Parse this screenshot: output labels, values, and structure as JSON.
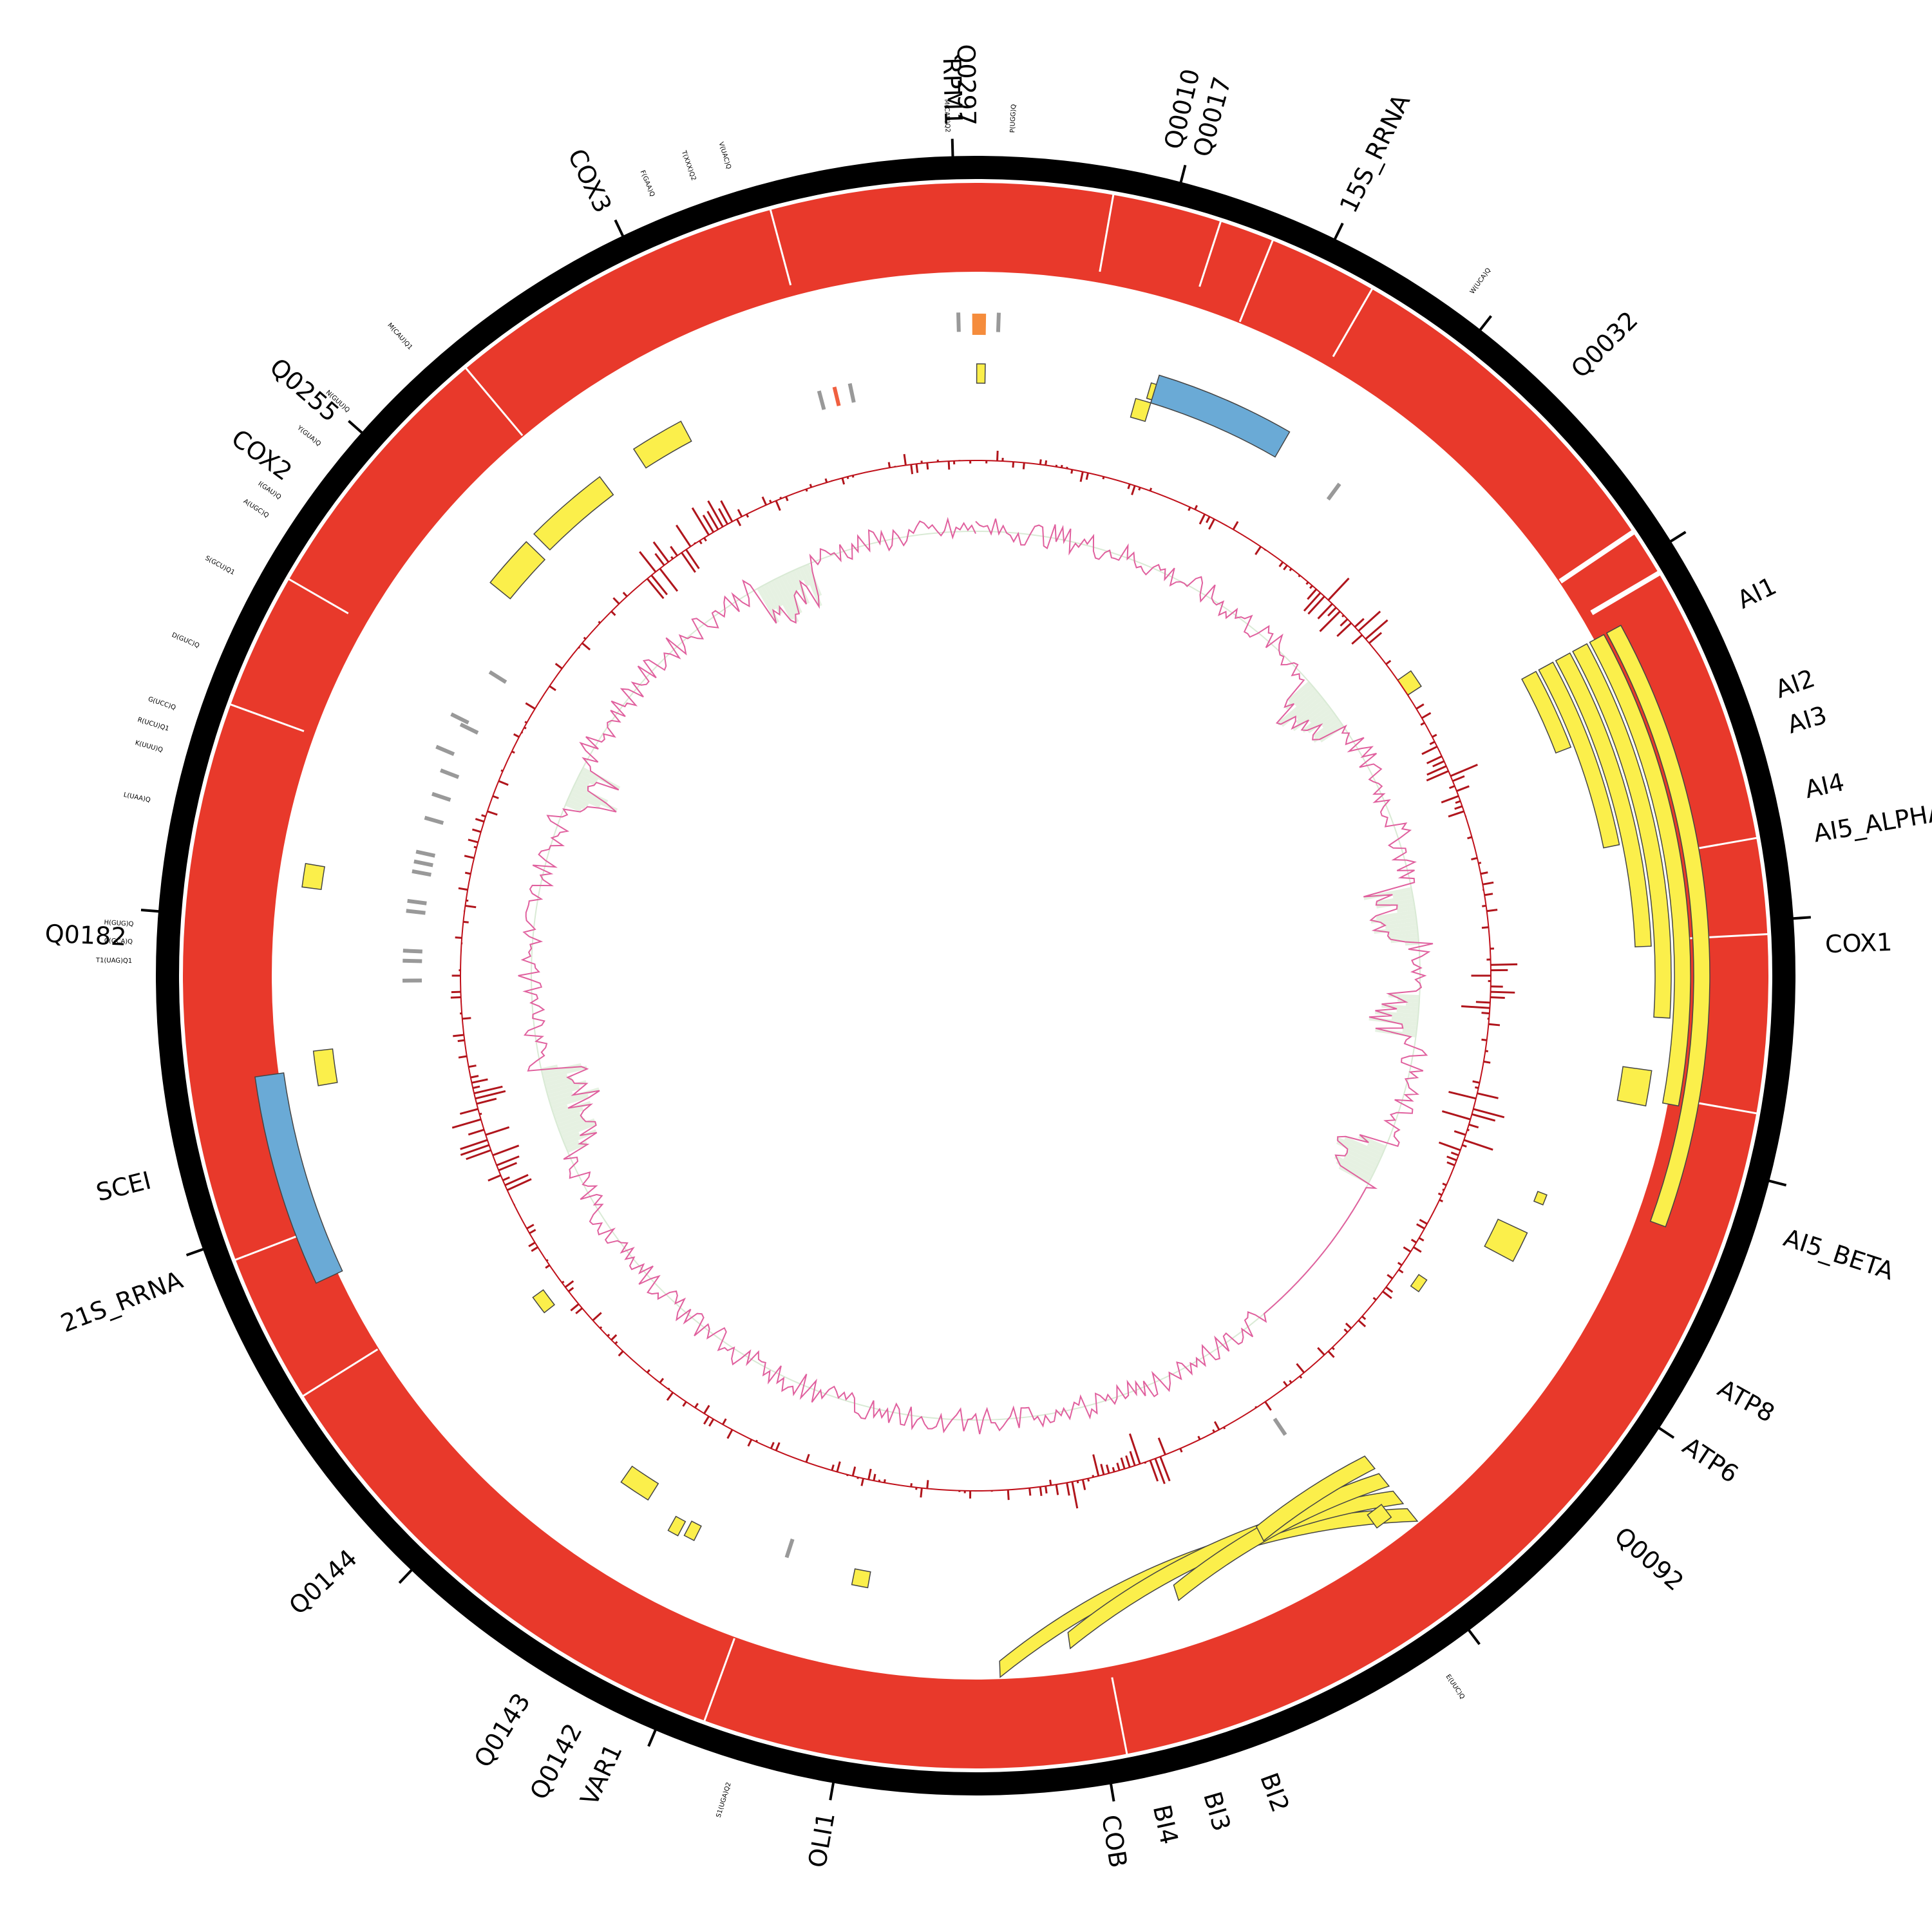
{
  "figure": {
    "type": "circular-genome-map",
    "colors": {
      "backbone": "#000000",
      "coverage": "#e8392b",
      "intron": "#fbef4b",
      "rrna": "#6aaad6",
      "trna_gray": "#999999",
      "trna_orange": "#f58c3c",
      "trna_red": "#f06040",
      "gc_skew": "#b0151c",
      "gc_content": "#e0609e",
      "gc_content_fill": "#e6f1e2"
    },
    "gene_labels": [
      "Q0297",
      "RPM1",
      "Q0010",
      "Q0017",
      "15S_RRNA",
      "Q0032",
      "AI1",
      "AI2",
      "AI3",
      "AI4",
      "AI5_ALPHA",
      "COX1",
      "AI5_BETA",
      "ATP8",
      "ATP6",
      "Q0092",
      "BI2",
      "BI3",
      "BI4",
      "COB",
      "OLI1",
      "VAR1",
      "Q0142",
      "Q0143",
      "Q0144",
      "21S_RRNA",
      "SCEI",
      "Q0182",
      "COX2",
      "Q0255",
      "COX3"
    ],
    "trna_labels": [
      "M(CAU)Q2",
      "P(UGG)Q",
      "W(UCA)Q",
      "E(UUC)Q",
      "S1(UGA)Q2",
      "T1(UAG)Q1",
      "C(GCA)Q",
      "H(GUG)Q",
      "L(UAA)Q",
      "K(UUU)Q",
      "R(UCU)Q1",
      "G(UCC)Q",
      "D(GUC)Q",
      "S(GCU)Q1",
      "A(UGC)Q",
      "I(GAU)Q",
      "Y(GUA)Q",
      "N(GUU)Q",
      "M(CAU)Q1",
      "F(GAA)Q",
      "T(XXX)Q2",
      "V(UAC)Q"
    ]
  }
}
